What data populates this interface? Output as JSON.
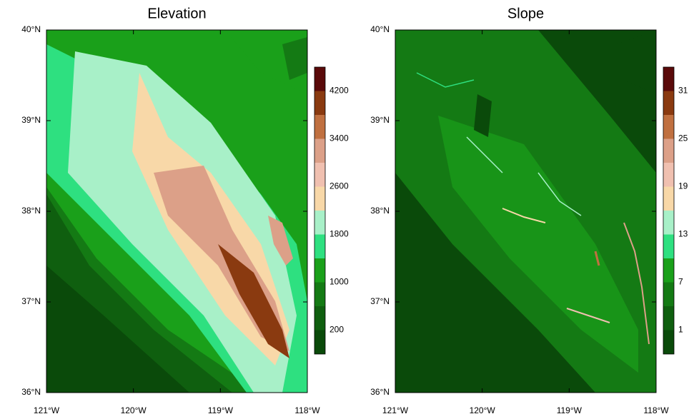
{
  "panels": [
    {
      "title": "Elevation",
      "xticks": [
        "121°W",
        "120°W",
        "119°W",
        "118°W"
      ],
      "yticks": [
        "36°N",
        "37°N",
        "38°N",
        "39°N",
        "40°N"
      ],
      "colorbar": {
        "labels": [
          200,
          1000,
          1800,
          2600,
          3400,
          4200
        ],
        "colors": [
          "#0a4a0a",
          "#0f5f0f",
          "#147a14",
          "#1aa01a",
          "#2ee080",
          "#a8f0c8",
          "#f8d8a8",
          "#f0c0b0",
          "#dca088",
          "#c07040",
          "#8a3a10",
          "#5a0a0a"
        ]
      }
    },
    {
      "title": "Slope",
      "xticks": [
        "121°W",
        "120°W",
        "119°W",
        "118°W"
      ],
      "yticks": [
        "36°N",
        "37°N",
        "38°N",
        "39°N",
        "40°N"
      ],
      "colorbar": {
        "labels": [
          1,
          7,
          13,
          19,
          25,
          31
        ],
        "colors": [
          "#0a4a0a",
          "#0f5f0f",
          "#147a14",
          "#1aa01a",
          "#2ee080",
          "#a8f0c8",
          "#f8d8a8",
          "#f0c0b0",
          "#dca088",
          "#c07040",
          "#8a3a10",
          "#5a0a0a"
        ]
      }
    }
  ]
}
